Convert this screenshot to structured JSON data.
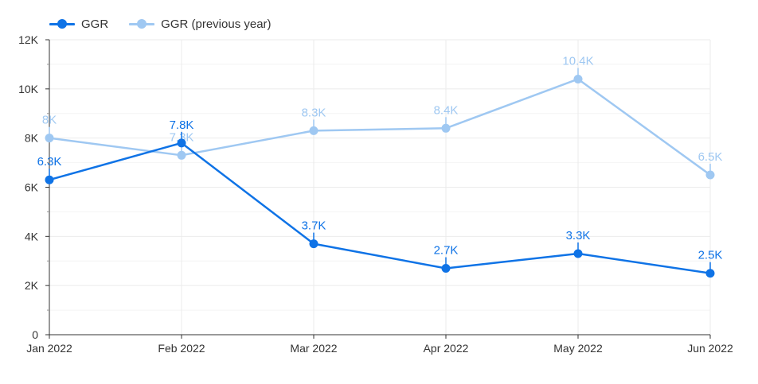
{
  "chart_data": {
    "type": "line",
    "title": "",
    "xlabel": "",
    "ylabel": "",
    "categories": [
      "Jan 2022",
      "Feb 2022",
      "Mar 2022",
      "Apr 2022",
      "May 2022",
      "Jun 2022"
    ],
    "ylim": [
      0,
      12000
    ],
    "y_ticks": [
      0,
      2000,
      4000,
      6000,
      8000,
      10000,
      12000
    ],
    "y_tick_labels": [
      "0",
      "2K",
      "4K",
      "6K",
      "8K",
      "10K",
      "12K"
    ],
    "grid": true,
    "legend_position": "top-left",
    "series": [
      {
        "name": "GGR",
        "color": "#0f73e6",
        "values": [
          6300,
          7800,
          3700,
          2700,
          3300,
          2500
        ],
        "labels": [
          "6.3K",
          "7.8K",
          "3.7K",
          "2.7K",
          "3.3K",
          "2.5K"
        ]
      },
      {
        "name": "GGR (previous year)",
        "color": "#9fc8f2",
        "values": [
          8000,
          7300,
          8300,
          8400,
          10400,
          6500
        ],
        "labels": [
          "8K",
          "7.3K",
          "8.3K",
          "8.4K",
          "10.4K",
          "6.5K"
        ]
      }
    ]
  }
}
